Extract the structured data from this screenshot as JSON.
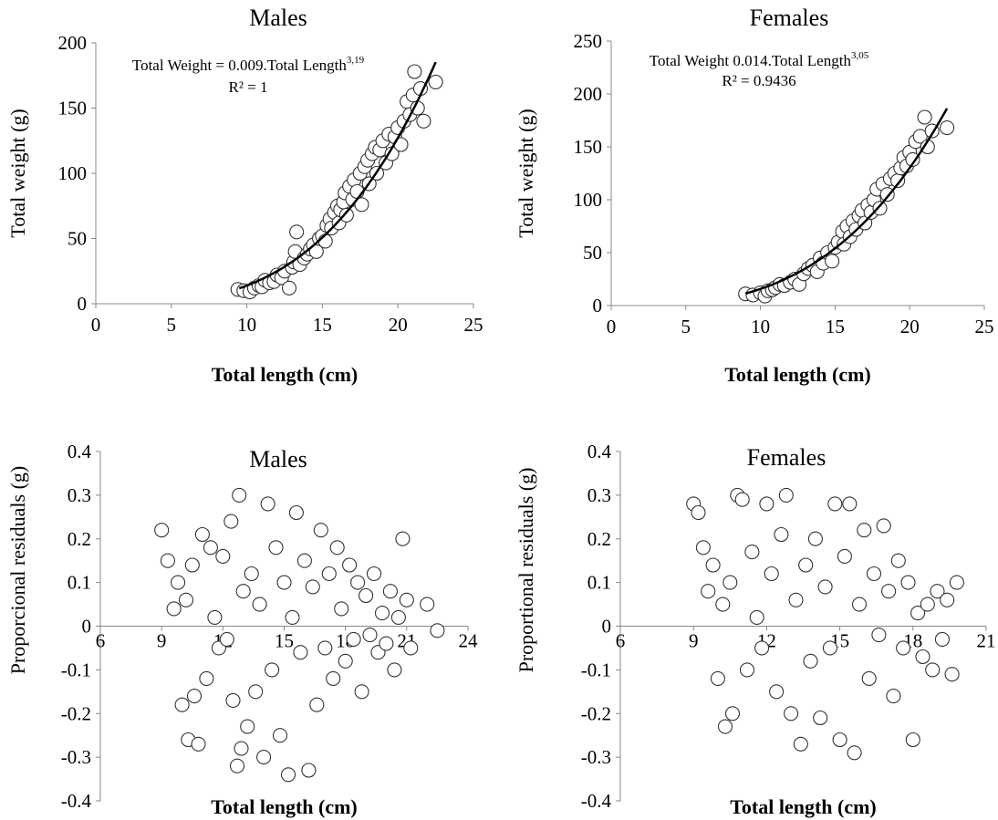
{
  "chart_data": [
    {
      "type": "scatter",
      "title": "Males",
      "xlabel": "Total length (cm)",
      "ylabel": "Total weight (g)",
      "xlim": [
        0,
        25
      ],
      "ylim": [
        0,
        200
      ],
      "x_ticks": [
        "0",
        "5",
        "10",
        "15",
        "20",
        "25"
      ],
      "y_ticks": [
        "0",
        "50",
        "100",
        "150",
        "200"
      ],
      "equation": {
        "text": "Total Weight = 0.009.Total Length",
        "exponent": "3,19",
        "r2": "R² = 1"
      },
      "trendline": {
        "a": 0.009,
        "b": 3.19,
        "x_range": [
          9.5,
          22.5
        ]
      },
      "series": [
        {
          "points": [
            [
              9.4,
              11
            ],
            [
              9.8,
              10
            ],
            [
              10.2,
              9
            ],
            [
              10.5,
              12
            ],
            [
              10.8,
              14
            ],
            [
              11,
              13
            ],
            [
              11.2,
              18
            ],
            [
              11.5,
              16
            ],
            [
              11.8,
              17
            ],
            [
              12,
              22
            ],
            [
              12.3,
              20
            ],
            [
              12.5,
              25
            ],
            [
              12.8,
              12
            ],
            [
              13,
              28
            ],
            [
              13.1,
              32
            ],
            [
              13.2,
              40
            ],
            [
              13.3,
              55
            ],
            [
              13.5,
              30
            ],
            [
              13.8,
              35
            ],
            [
              14,
              38
            ],
            [
              14.2,
              42
            ],
            [
              14.4,
              45
            ],
            [
              14.6,
              40
            ],
            [
              14.8,
              50
            ],
            [
              15,
              52
            ],
            [
              15.2,
              48
            ],
            [
              15.3,
              60
            ],
            [
              15.5,
              65
            ],
            [
              15.6,
              58
            ],
            [
              15.8,
              70
            ],
            [
              16,
              75
            ],
            [
              16.1,
              62
            ],
            [
              16.2,
              72
            ],
            [
              16.4,
              78
            ],
            [
              16.5,
              85
            ],
            [
              16.6,
              68
            ],
            [
              16.8,
              90
            ],
            [
              17,
              80
            ],
            [
              17.1,
              95
            ],
            [
              17.3,
              86
            ],
            [
              17.5,
              100
            ],
            [
              17.6,
              76
            ],
            [
              17.8,
              105
            ],
            [
              18,
              110
            ],
            [
              18.1,
              92
            ],
            [
              18.3,
              115
            ],
            [
              18.5,
              120
            ],
            [
              18.6,
              100
            ],
            [
              18.8,
              118
            ],
            [
              19,
              125
            ],
            [
              19.2,
              108
            ],
            [
              19.4,
              130
            ],
            [
              19.6,
              115
            ],
            [
              19.8,
              128
            ],
            [
              20,
              135
            ],
            [
              20.2,
              122
            ],
            [
              20.4,
              140
            ],
            [
              20.6,
              155
            ],
            [
              20.8,
              145
            ],
            [
              21,
              160
            ],
            [
              21.1,
              178
            ],
            [
              21.3,
              150
            ],
            [
              21.5,
              165
            ],
            [
              21.7,
              140
            ],
            [
              22.5,
              170
            ]
          ]
        }
      ]
    },
    {
      "type": "scatter",
      "title": "Females",
      "xlabel": "Total length (cm)",
      "ylabel": "Total weight (g)",
      "xlim": [
        0,
        25
      ],
      "ylim": [
        0,
        250
      ],
      "x_ticks": [
        "0",
        "5",
        "10",
        "15",
        "20",
        "25"
      ],
      "y_ticks": [
        "0",
        "50",
        "100",
        "150",
        "200",
        "250"
      ],
      "equation": {
        "text": "Total Weight 0.014.Total Length",
        "exponent": "3,05",
        "r2": "R² = 0.9436"
      },
      "trendline": {
        "a": 0.014,
        "b": 3.05,
        "x_range": [
          9.0,
          22.5
        ]
      },
      "series": [
        {
          "points": [
            [
              9,
              11
            ],
            [
              9.5,
              10
            ],
            [
              10,
              12
            ],
            [
              10.3,
              9
            ],
            [
              10.5,
              14
            ],
            [
              10.8,
              15
            ],
            [
              11,
              17
            ],
            [
              11.3,
              20
            ],
            [
              11.6,
              19
            ],
            [
              12,
              22
            ],
            [
              12.3,
              25
            ],
            [
              12.6,
              20
            ],
            [
              12.9,
              30
            ],
            [
              13.2,
              35
            ],
            [
              13.5,
              38
            ],
            [
              13.8,
              32
            ],
            [
              14,
              45
            ],
            [
              14.2,
              40
            ],
            [
              14.5,
              50
            ],
            [
              14.8,
              42
            ],
            [
              15,
              55
            ],
            [
              15.2,
              60
            ],
            [
              15.5,
              70
            ],
            [
              15.6,
              58
            ],
            [
              15.8,
              75
            ],
            [
              16,
              65
            ],
            [
              16.2,
              80
            ],
            [
              16.4,
              72
            ],
            [
              16.6,
              85
            ],
            [
              16.8,
              90
            ],
            [
              17,
              78
            ],
            [
              17.2,
              95
            ],
            [
              17.4,
              88
            ],
            [
              17.6,
              100
            ],
            [
              17.8,
              110
            ],
            [
              18,
              92
            ],
            [
              18.2,
              115
            ],
            [
              18.5,
              105
            ],
            [
              18.7,
              120
            ],
            [
              19,
              125
            ],
            [
              19.2,
              118
            ],
            [
              19.4,
              130
            ],
            [
              19.6,
              140
            ],
            [
              19.8,
              132
            ],
            [
              20,
              145
            ],
            [
              20.2,
              138
            ],
            [
              20.4,
              155
            ],
            [
              20.7,
              160
            ],
            [
              21,
              178
            ],
            [
              21.2,
              150
            ],
            [
              21.5,
              165
            ],
            [
              22.5,
              168
            ]
          ]
        }
      ]
    },
    {
      "type": "scatter",
      "title": "Males",
      "xlabel": "Total length (cm)",
      "ylabel": "Proporcional residuals (g)",
      "xlim": [
        6,
        24
      ],
      "ylim": [
        -0.4,
        0.4
      ],
      "x_ticks": [
        "6",
        "9",
        "12",
        "15",
        "18",
        "21",
        "24"
      ],
      "y_ticks": [
        "-0.4",
        "-0.3",
        "-0.2",
        "-0.1",
        "0",
        "0.1",
        "0.2",
        "0.3",
        "0.4"
      ],
      "series": [
        {
          "points": [
            [
              9,
              0.22
            ],
            [
              9.3,
              0.15
            ],
            [
              9.6,
              0.04
            ],
            [
              9.8,
              0.1
            ],
            [
              10,
              -0.18
            ],
            [
              10.2,
              0.06
            ],
            [
              10.3,
              -0.26
            ],
            [
              10.5,
              0.14
            ],
            [
              10.6,
              -0.16
            ],
            [
              10.8,
              -0.27
            ],
            [
              11,
              0.21
            ],
            [
              11.2,
              -0.12
            ],
            [
              11.4,
              0.18
            ],
            [
              11.6,
              0.02
            ],
            [
              11.8,
              -0.05
            ],
            [
              12,
              0.16
            ],
            [
              12.2,
              -0.03
            ],
            [
              12.4,
              0.24
            ],
            [
              12.5,
              -0.17
            ],
            [
              12.7,
              -0.32
            ],
            [
              12.8,
              0.3
            ],
            [
              12.9,
              -0.28
            ],
            [
              13,
              0.08
            ],
            [
              13.2,
              -0.23
            ],
            [
              13.4,
              0.12
            ],
            [
              13.6,
              -0.15
            ],
            [
              13.8,
              0.05
            ],
            [
              14,
              -0.3
            ],
            [
              14.2,
              0.28
            ],
            [
              14.4,
              -0.1
            ],
            [
              14.6,
              0.18
            ],
            [
              14.8,
              -0.25
            ],
            [
              15,
              0.1
            ],
            [
              15.2,
              -0.34
            ],
            [
              15.4,
              0.02
            ],
            [
              15.6,
              0.26
            ],
            [
              15.8,
              -0.06
            ],
            [
              16,
              0.15
            ],
            [
              16.2,
              -0.33
            ],
            [
              16.4,
              0.09
            ],
            [
              16.6,
              -0.18
            ],
            [
              16.8,
              0.22
            ],
            [
              17,
              -0.05
            ],
            [
              17.2,
              0.12
            ],
            [
              17.4,
              -0.12
            ],
            [
              17.6,
              0.18
            ],
            [
              17.8,
              0.04
            ],
            [
              18,
              -0.08
            ],
            [
              18.2,
              0.14
            ],
            [
              18.4,
              -0.03
            ],
            [
              18.6,
              0.1
            ],
            [
              18.8,
              -0.15
            ],
            [
              19,
              0.07
            ],
            [
              19.2,
              -0.02
            ],
            [
              19.4,
              0.12
            ],
            [
              19.6,
              -0.06
            ],
            [
              19.8,
              0.03
            ],
            [
              20,
              -0.04
            ],
            [
              20.2,
              0.08
            ],
            [
              20.4,
              -0.1
            ],
            [
              20.6,
              0.02
            ],
            [
              20.8,
              0.2
            ],
            [
              21,
              0.06
            ],
            [
              21.2,
              -0.05
            ],
            [
              22,
              0.05
            ],
            [
              22.5,
              -0.01
            ]
          ]
        }
      ]
    },
    {
      "type": "scatter",
      "title": "Females",
      "xlabel": "Total length (cm)",
      "ylabel": "Proportional residuals (g)",
      "xlim": [
        6,
        21
      ],
      "ylim": [
        -0.4,
        0.4
      ],
      "x_ticks": [
        "6",
        "9",
        "12",
        "15",
        "18",
        "21"
      ],
      "y_ticks": [
        "-0.4",
        "-0.3",
        "-0.2",
        "-0.1",
        "0",
        "0.1",
        "0.2",
        "0.3",
        "0.4"
      ],
      "series": [
        {
          "points": [
            [
              9,
              0.28
            ],
            [
              9.2,
              0.26
            ],
            [
              9.4,
              0.18
            ],
            [
              9.6,
              0.08
            ],
            [
              9.8,
              0.14
            ],
            [
              10,
              -0.12
            ],
            [
              10.2,
              0.05
            ],
            [
              10.3,
              -0.23
            ],
            [
              10.5,
              0.1
            ],
            [
              10.6,
              -0.2
            ],
            [
              10.8,
              0.3
            ],
            [
              11,
              0.29
            ],
            [
              11.2,
              -0.1
            ],
            [
              11.4,
              0.17
            ],
            [
              11.6,
              0.02
            ],
            [
              11.8,
              -0.05
            ],
            [
              12,
              0.28
            ],
            [
              12.2,
              0.12
            ],
            [
              12.4,
              -0.15
            ],
            [
              12.6,
              0.21
            ],
            [
              12.8,
              0.3
            ],
            [
              13,
              -0.2
            ],
            [
              13.2,
              0.06
            ],
            [
              13.4,
              -0.27
            ],
            [
              13.6,
              0.14
            ],
            [
              13.8,
              -0.08
            ],
            [
              14,
              0.2
            ],
            [
              14.2,
              -0.21
            ],
            [
              14.4,
              0.09
            ],
            [
              14.6,
              -0.05
            ],
            [
              14.8,
              0.28
            ],
            [
              15,
              -0.26
            ],
            [
              15.2,
              0.16
            ],
            [
              15.4,
              0.28
            ],
            [
              15.6,
              -0.29
            ],
            [
              15.8,
              0.05
            ],
            [
              16,
              0.22
            ],
            [
              16.2,
              -0.12
            ],
            [
              16.4,
              0.12
            ],
            [
              16.6,
              -0.02
            ],
            [
              16.8,
              0.23
            ],
            [
              17,
              0.08
            ],
            [
              17.2,
              -0.16
            ],
            [
              17.4,
              0.15
            ],
            [
              17.6,
              -0.05
            ],
            [
              17.8,
              0.1
            ],
            [
              18,
              -0.26
            ],
            [
              18.2,
              0.03
            ],
            [
              18.4,
              -0.07
            ],
            [
              18.6,
              0.05
            ],
            [
              18.8,
              -0.1
            ],
            [
              19,
              0.08
            ],
            [
              19.2,
              -0.03
            ],
            [
              19.4,
              0.06
            ],
            [
              19.6,
              -0.11
            ],
            [
              19.8,
              0.1
            ]
          ]
        }
      ]
    }
  ]
}
